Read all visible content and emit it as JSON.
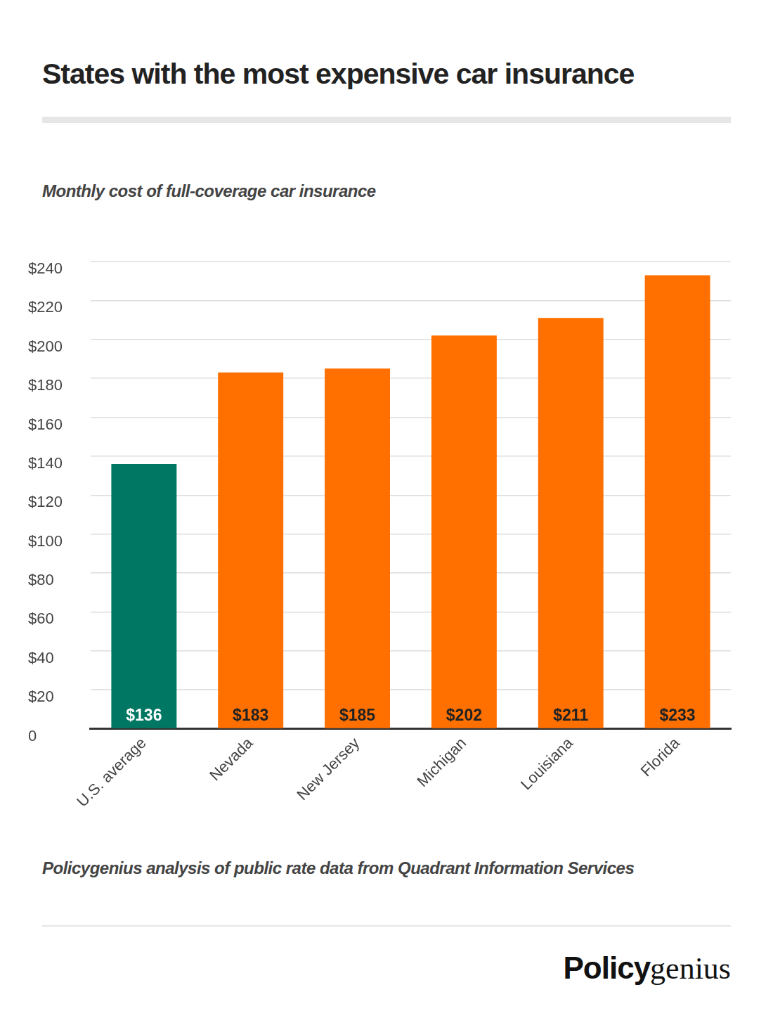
{
  "chart_data": {
    "type": "bar",
    "title": "States with the most expensive car insurance",
    "subtitle": "Monthly cost of full-coverage car insurance",
    "source": "Policygenius analysis of public rate data from Quadrant Information Services",
    "logo": [
      "Policy",
      "genius"
    ],
    "categories": [
      "U.S. average",
      "Nevada",
      "New Jersey",
      "Michigan",
      "Louisiana",
      "Florida"
    ],
    "values": [
      136,
      183,
      185,
      202,
      211,
      233
    ],
    "value_labels": [
      "$136",
      "$183",
      "$185",
      "$202",
      "$211",
      "$233"
    ],
    "colors": [
      "#007763",
      "#ff7000",
      "#ff7000",
      "#ff7000",
      "#ff7000",
      "#ff7000"
    ],
    "ylim": [
      0,
      240
    ],
    "yticks": [
      0,
      {
        "value": 20,
        "label": "$20"
      },
      {
        "value": 40,
        "label": "$40"
      },
      {
        "value": 60,
        "label": "$60"
      },
      {
        "value": 80,
        "label": "$80"
      },
      {
        "value": 100,
        "label": "$100"
      },
      {
        "value": 120,
        "label": "$120"
      },
      {
        "value": 140,
        "label": "$140"
      },
      {
        "value": 160,
        "label": "$160"
      },
      {
        "value": 180,
        "label": "$180"
      },
      {
        "value": 200,
        "label": "$200"
      },
      {
        "value": 220,
        "label": "$220"
      },
      {
        "value": 240,
        "label": "$240"
      }
    ],
    "grid": true,
    "data_labels": true
  }
}
